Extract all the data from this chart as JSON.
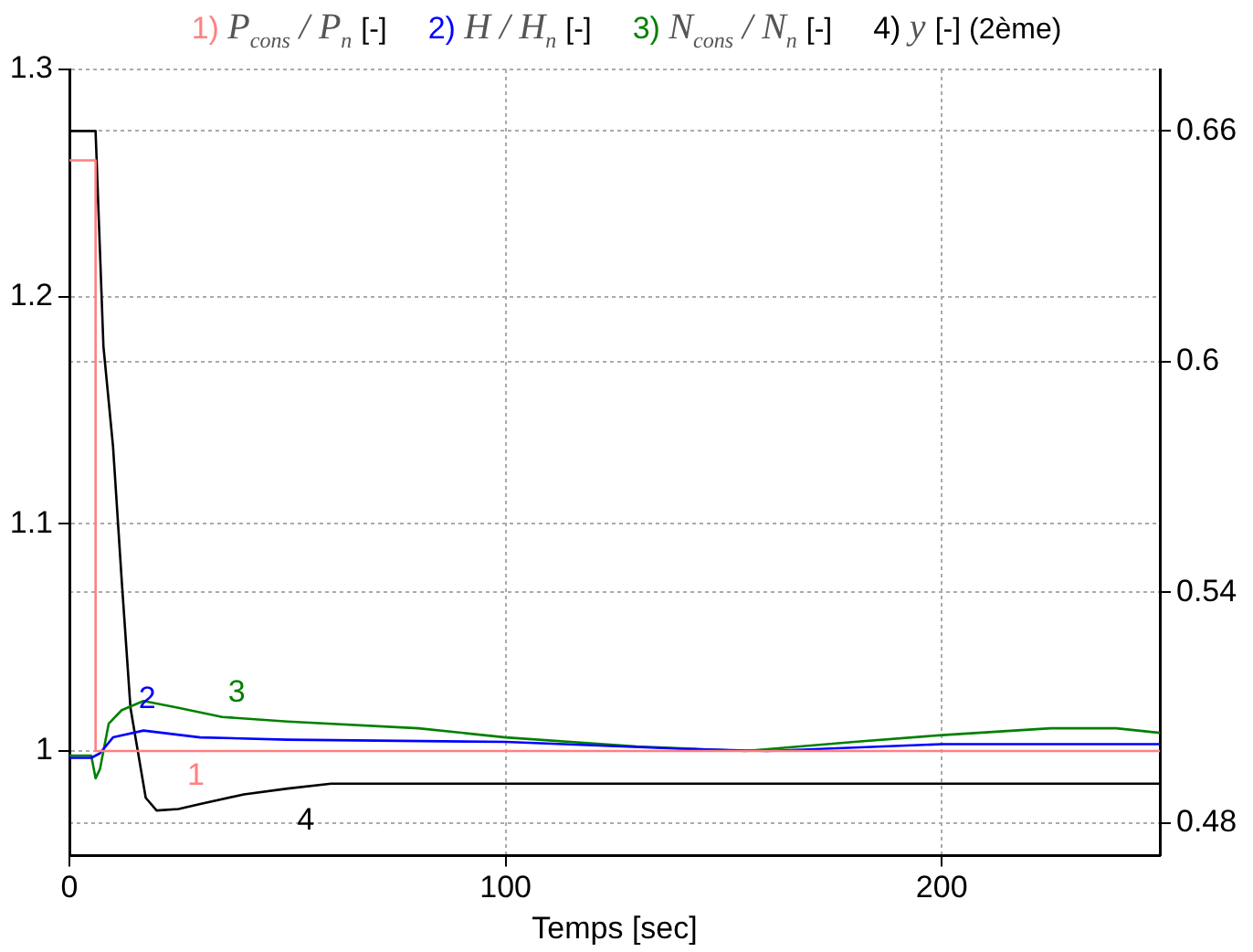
{
  "chart_data": {
    "type": "line",
    "xlabel": "Temps [sec]",
    "xlim": [
      0,
      250
    ],
    "xticks": [
      0,
      100,
      200
    ],
    "ylim": [
      0.954,
      1.3
    ],
    "yticks": [
      1,
      1.1,
      1.2,
      1.3
    ],
    "y2lim": [
      0.4716,
      0.676
    ],
    "y2ticks": [
      0.48,
      0.54,
      0.6,
      0.66
    ],
    "grid": true,
    "legend": "top",
    "marker": "none",
    "line_style": "solid",
    "series": [
      {
        "name": "1) P$_{cons}$ / P$_{n}$ [-]",
        "color": "#ff8080",
        "x": [
          0,
          6,
          6,
          250
        ],
        "values": [
          1.26,
          1.26,
          1.0,
          1.0
        ]
      },
      {
        "name": "2) H / H$_{n}$ [-]",
        "color": "#0000ff",
        "x": [
          0,
          5,
          7,
          10,
          17,
          30,
          50,
          100,
          140,
          160,
          200,
          250
        ],
        "values": [
          0.997,
          0.997,
          0.999,
          1.006,
          1.009,
          1.006,
          1.005,
          1.004,
          1.001,
          1.0,
          1.003,
          1.003
        ]
      },
      {
        "name": "3) N$_{cons}$ / N$_{n}$ [-]",
        "color": "#008000",
        "x": [
          0,
          5,
          6,
          7,
          9,
          12,
          17,
          25,
          35,
          50,
          80,
          100,
          130,
          155,
          180,
          200,
          225,
          240,
          250
        ],
        "values": [
          0.998,
          0.998,
          0.988,
          0.992,
          1.012,
          1.018,
          1.022,
          1.019,
          1.015,
          1.013,
          1.01,
          1.006,
          1.002,
          1.0,
          1.004,
          1.007,
          1.01,
          1.01,
          1.008
        ]
      },
      {
        "name": "4) y [-] (2ème)",
        "color": "#000000",
        "axis": "y2",
        "x": [
          0,
          6,
          7.8,
          10,
          12,
          14,
          17.5,
          20,
          25,
          30,
          40,
          50,
          60,
          250
        ],
        "values": [
          0.66,
          0.66,
          0.604,
          0.578,
          0.543,
          0.51,
          0.4866,
          0.4833,
          0.4837,
          0.485,
          0.4875,
          0.489,
          0.4903,
          0.4903
        ]
      }
    ],
    "annotations": [
      {
        "text": "1",
        "x": 29,
        "y": 1.0
      },
      {
        "text": "2",
        "x": 17,
        "y": 1.009
      },
      {
        "text": "3",
        "x": 35,
        "y": 1.015
      },
      {
        "text": "4",
        "x": 50,
        "y": 0.983
      }
    ]
  }
}
